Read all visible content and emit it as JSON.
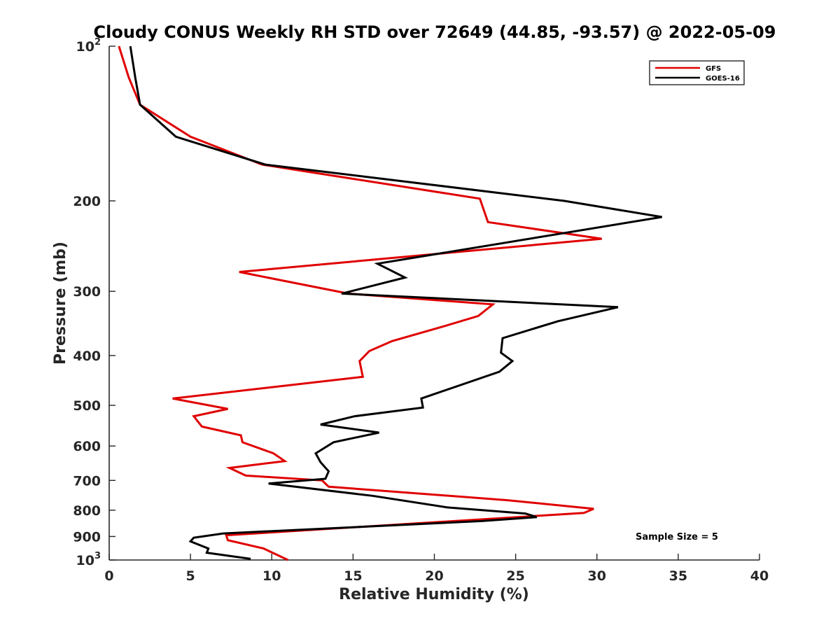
{
  "chart_data": {
    "type": "line",
    "title": "Cloudy CONUS Weekly RH STD over 72649 (44.85, -93.57) @ 2022-05-09",
    "xlabel": "Relative Humidity (%)",
    "ylabel": "Pressure (mb)",
    "xlim": [
      0,
      40
    ],
    "ylim": [
      100,
      1000
    ],
    "yscale": "log",
    "yreversed": true,
    "x_ticks": [
      "0",
      "5",
      "10",
      "15",
      "20",
      "25",
      "30",
      "35",
      "40"
    ],
    "y_ticks": [
      {
        "value": 100,
        "base": "10",
        "exp": "2"
      },
      {
        "value": 200,
        "label": "200"
      },
      {
        "value": 300,
        "label": "300"
      },
      {
        "value": 400,
        "label": "400"
      },
      {
        "value": 500,
        "label": "500"
      },
      {
        "value": 600,
        "label": "600"
      },
      {
        "value": 700,
        "label": "700"
      },
      {
        "value": 800,
        "label": "800"
      },
      {
        "value": 900,
        "label": "900"
      },
      {
        "value": 1000,
        "base": "10",
        "exp": "3"
      }
    ],
    "grid": false,
    "legend_position": "top-right",
    "annotation": "Sample Size = 5",
    "series": [
      {
        "name": "GFS",
        "color": "#e00000",
        "points": [
          [
            0.6,
            100
          ],
          [
            1.2,
            115
          ],
          [
            1.9,
            130
          ],
          [
            5.0,
            150
          ],
          [
            9.4,
            170
          ],
          [
            22.8,
            198
          ],
          [
            23.3,
            220
          ],
          [
            30.3,
            237
          ],
          [
            8.0,
            275
          ],
          [
            14.7,
            303
          ],
          [
            23.6,
            318
          ],
          [
            22.7,
            335
          ],
          [
            20.7,
            350
          ],
          [
            17.4,
            375
          ],
          [
            16.0,
            392
          ],
          [
            15.4,
            410
          ],
          [
            15.6,
            440
          ],
          [
            3.9,
            485
          ],
          [
            7.3,
            508
          ],
          [
            5.2,
            525
          ],
          [
            5.7,
            550
          ],
          [
            8.1,
            572
          ],
          [
            8.2,
            590
          ],
          [
            10.1,
            620
          ],
          [
            10.8,
            642
          ],
          [
            7.4,
            662
          ],
          [
            8.4,
            685
          ],
          [
            13.1,
            700
          ],
          [
            13.5,
            720
          ],
          [
            24.5,
            765
          ],
          [
            29.8,
            795
          ],
          [
            29.2,
            810
          ],
          [
            7.2,
            895
          ],
          [
            7.3,
            915
          ],
          [
            9.5,
            950
          ],
          [
            11.0,
            1000
          ]
        ]
      },
      {
        "name": "GOES-16",
        "color": "#000000",
        "points": [
          [
            1.3,
            100
          ],
          [
            1.6,
            115
          ],
          [
            1.9,
            130
          ],
          [
            4.1,
            150
          ],
          [
            9.6,
            170
          ],
          [
            28.0,
            200
          ],
          [
            34.0,
            215
          ],
          [
            16.5,
            265
          ],
          [
            18.2,
            282
          ],
          [
            14.3,
            303
          ],
          [
            31.3,
            322
          ],
          [
            27.6,
            343
          ],
          [
            24.2,
            370
          ],
          [
            24.1,
            395
          ],
          [
            24.8,
            410
          ],
          [
            24.0,
            430
          ],
          [
            19.2,
            485
          ],
          [
            19.3,
            505
          ],
          [
            15.1,
            525
          ],
          [
            13.0,
            545
          ],
          [
            16.6,
            565
          ],
          [
            13.8,
            590
          ],
          [
            12.7,
            620
          ],
          [
            13.0,
            645
          ],
          [
            13.5,
            672
          ],
          [
            13.3,
            695
          ],
          [
            9.8,
            710
          ],
          [
            16.2,
            750
          ],
          [
            20.8,
            790
          ],
          [
            25.6,
            812
          ],
          [
            26.3,
            825
          ],
          [
            22.9,
            840
          ],
          [
            7.0,
            888
          ],
          [
            5.2,
            905
          ],
          [
            5.0,
            920
          ],
          [
            6.1,
            950
          ],
          [
            6.0,
            968
          ],
          [
            8.7,
            995
          ]
        ]
      }
    ]
  }
}
